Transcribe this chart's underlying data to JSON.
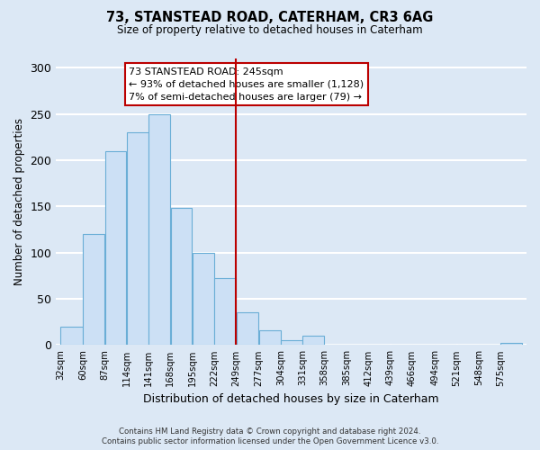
{
  "title": "73, STANSTEAD ROAD, CATERHAM, CR3 6AG",
  "subtitle": "Size of property relative to detached houses in Caterham",
  "xlabel": "Distribution of detached houses by size in Caterham",
  "ylabel": "Number of detached properties",
  "bin_labels": [
    "32sqm",
    "60sqm",
    "87sqm",
    "114sqm",
    "141sqm",
    "168sqm",
    "195sqm",
    "222sqm",
    "249sqm",
    "277sqm",
    "304sqm",
    "331sqm",
    "358sqm",
    "385sqm",
    "412sqm",
    "439sqm",
    "466sqm",
    "494sqm",
    "521sqm",
    "548sqm",
    "575sqm"
  ],
  "bar_heights": [
    20,
    120,
    210,
    230,
    250,
    148,
    100,
    72,
    35,
    16,
    5,
    10,
    0,
    0,
    0,
    0,
    0,
    0,
    0,
    0,
    2
  ],
  "bar_color": "#cce0f5",
  "bar_edge_color": "#6aaed6",
  "vline_color": "#bb0000",
  "ylim": [
    0,
    310
  ],
  "yticks": [
    0,
    50,
    100,
    150,
    200,
    250,
    300
  ],
  "annotation_title": "73 STANSTEAD ROAD: 245sqm",
  "annotation_line1": "← 93% of detached houses are smaller (1,128)",
  "annotation_line2": "7% of semi-detached houses are larger (79) →",
  "annotation_box_facecolor": "#ffffff",
  "annotation_box_edgecolor": "#bb0000",
  "footer1": "Contains HM Land Registry data © Crown copyright and database right 2024.",
  "footer2": "Contains public sector information licensed under the Open Government Licence v3.0.",
  "background_color": "#dce8f5",
  "plot_background_color": "#dce8f5",
  "grid_color": "#ffffff",
  "bin_edges": [
    32,
    60,
    87,
    114,
    141,
    168,
    195,
    222,
    249,
    277,
    304,
    331,
    358,
    385,
    412,
    439,
    466,
    494,
    521,
    548,
    575,
    602
  ],
  "vline_x": 249
}
